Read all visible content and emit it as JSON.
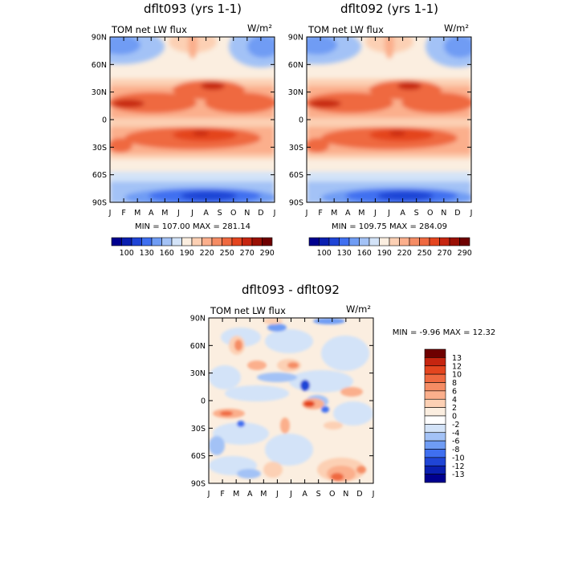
{
  "colors": {
    "scale_abs": [
      "#00008f",
      "#0a1fb0",
      "#1f45d6",
      "#3f6ff0",
      "#6f9cf4",
      "#a3c2f6",
      "#d3e3f8",
      "#fbeee0",
      "#fcd0b4",
      "#fbaf8c",
      "#f58c64",
      "#ef6940",
      "#e4451f",
      "#c62510",
      "#9a1004",
      "#6e0000"
    ],
    "scale_diff": [
      "#00008f",
      "#0a1fb0",
      "#1f45d6",
      "#3f6ff0",
      "#6f9cf4",
      "#a3c2f6",
      "#d3e3f8",
      "#ffffff",
      "#fbeee0",
      "#fcd0b4",
      "#fbaf8c",
      "#f58c64",
      "#ef6940",
      "#e4451f",
      "#c62510",
      "#6e0000"
    ]
  },
  "chart_data": [
    {
      "type": "heatmap",
      "title": "dflt093 (yrs 1-1)",
      "variable_label": "TOM net LW flux",
      "units_label": "W/m²",
      "x_ticks": [
        "J",
        "F",
        "M",
        "A",
        "M",
        "J",
        "J",
        "A",
        "S",
        "O",
        "N",
        "D",
        "J"
      ],
      "y_ticks": [
        "90N",
        "60N",
        "30N",
        "0",
        "30S",
        "60S",
        "90S"
      ],
      "minmax": "MIN = 107.00 MAX = 281.14",
      "colorbar_labels": [
        "100",
        "130",
        "160",
        "190",
        "220",
        "250",
        "270",
        "290"
      ],
      "min": 107.0,
      "max": 281.14
    },
    {
      "type": "heatmap",
      "title": "dflt092 (yrs 1-1)",
      "variable_label": "TOM net LW flux",
      "units_label": "W/m²",
      "x_ticks": [
        "J",
        "F",
        "M",
        "A",
        "M",
        "J",
        "J",
        "A",
        "S",
        "O",
        "N",
        "D",
        "J"
      ],
      "y_ticks": [
        "90N",
        "60N",
        "30N",
        "0",
        "30S",
        "60S",
        "90S"
      ],
      "minmax": "MIN = 109.75 MAX = 284.09",
      "colorbar_labels": [
        "100",
        "130",
        "160",
        "190",
        "220",
        "250",
        "270",
        "290"
      ],
      "min": 109.75,
      "max": 284.09
    },
    {
      "type": "heatmap",
      "title": "dflt093 - dflt092",
      "variable_label": "TOM net LW flux",
      "units_label": "W/m²",
      "x_ticks": [
        "J",
        "F",
        "M",
        "A",
        "M",
        "J",
        "J",
        "A",
        "S",
        "O",
        "N",
        "D",
        "J"
      ],
      "y_ticks": [
        "90N",
        "60N",
        "30N",
        "0",
        "30S",
        "60S",
        "90S"
      ],
      "minmax": "MIN =  -9.96 MAX =  12.32",
      "colorbar_labels": [
        "13",
        "12",
        "10",
        "8",
        "6",
        "4",
        "2",
        "0",
        "-2",
        "-4",
        "-6",
        "-8",
        "-10",
        "-12",
        "-13"
      ],
      "min": -9.96,
      "max": 12.32
    }
  ]
}
